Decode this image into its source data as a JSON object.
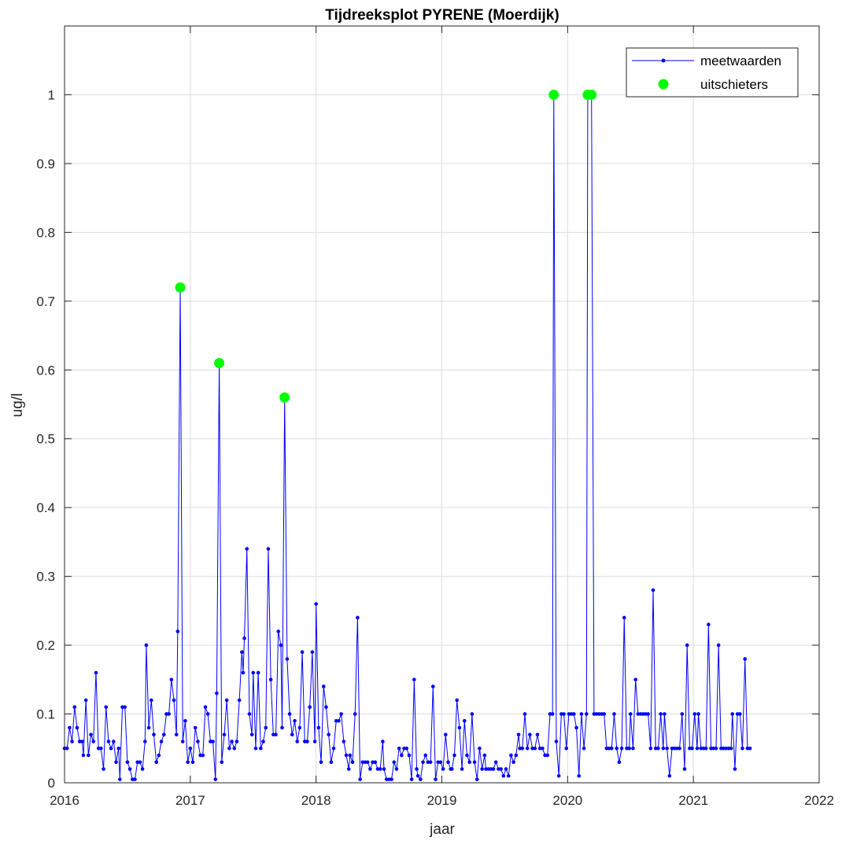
{
  "chart_data": {
    "type": "line",
    "title": "Tijdreeksplot PYRENE (Moerdijk)",
    "xlabel": "jaar",
    "ylabel": "ug/l",
    "xlim": [
      2016,
      2022
    ],
    "ylim": [
      0,
      1.1
    ],
    "x_ticks": [
      "2016",
      "2017",
      "2018",
      "2019",
      "2020",
      "2021",
      "2022"
    ],
    "y_ticks": [
      "0",
      "0.1",
      "0.2",
      "0.3",
      "0.4",
      "0.5",
      "0.6",
      "0.7",
      "0.8",
      "0.9",
      "1"
    ],
    "grid": true,
    "legend_position": "top-right",
    "series": [
      {
        "name": "meetwaarden",
        "color": "#0000ff",
        "style": "line-dot",
        "points": [
          [
            2016.0,
            0.05
          ],
          [
            2016.02,
            0.05
          ],
          [
            2016.04,
            0.08
          ],
          [
            2016.06,
            0.06
          ],
          [
            2016.08,
            0.11
          ],
          [
            2016.1,
            0.08
          ],
          [
            2016.12,
            0.06
          ],
          [
            2016.14,
            0.06
          ],
          [
            2016.15,
            0.04
          ],
          [
            2016.17,
            0.12
          ],
          [
            2016.19,
            0.04
          ],
          [
            2016.21,
            0.07
          ],
          [
            2016.23,
            0.06
          ],
          [
            2016.25,
            0.16
          ],
          [
            2016.27,
            0.05
          ],
          [
            2016.29,
            0.05
          ],
          [
            2016.31,
            0.02
          ],
          [
            2016.33,
            0.11
          ],
          [
            2016.35,
            0.06
          ],
          [
            2016.37,
            0.05
          ],
          [
            2016.39,
            0.06
          ],
          [
            2016.41,
            0.03
          ],
          [
            2016.43,
            0.05
          ],
          [
            2016.44,
            0.005
          ],
          [
            2016.46,
            0.11
          ],
          [
            2016.48,
            0.11
          ],
          [
            2016.5,
            0.03
          ],
          [
            2016.52,
            0.02
          ],
          [
            2016.54,
            0.005
          ],
          [
            2016.56,
            0.005
          ],
          [
            2016.58,
            0.03
          ],
          [
            2016.6,
            0.03
          ],
          [
            2016.62,
            0.02
          ],
          [
            2016.64,
            0.06
          ],
          [
            2016.65,
            0.2
          ],
          [
            2016.67,
            0.08
          ],
          [
            2016.69,
            0.12
          ],
          [
            2016.71,
            0.07
          ],
          [
            2016.73,
            0.03
          ],
          [
            2016.75,
            0.04
          ],
          [
            2016.77,
            0.06
          ],
          [
            2016.79,
            0.07
          ],
          [
            2016.81,
            0.1
          ],
          [
            2016.83,
            0.1
          ],
          [
            2016.85,
            0.15
          ],
          [
            2016.87,
            0.12
          ],
          [
            2016.89,
            0.07
          ],
          [
            2016.9,
            0.22
          ],
          [
            2016.92,
            0.72
          ],
          [
            2016.94,
            0.06
          ],
          [
            2016.96,
            0.09
          ],
          [
            2016.98,
            0.03
          ],
          [
            2017.0,
            0.05
          ],
          [
            2017.02,
            0.03
          ],
          [
            2017.04,
            0.08
          ],
          [
            2017.06,
            0.06
          ],
          [
            2017.08,
            0.04
          ],
          [
            2017.1,
            0.04
          ],
          [
            2017.12,
            0.11
          ],
          [
            2017.14,
            0.1
          ],
          [
            2017.16,
            0.06
          ],
          [
            2017.18,
            0.06
          ],
          [
            2017.2,
            0.005
          ],
          [
            2017.21,
            0.13
          ],
          [
            2017.23,
            0.61
          ],
          [
            2017.25,
            0.03
          ],
          [
            2017.27,
            0.07
          ],
          [
            2017.29,
            0.12
          ],
          [
            2017.31,
            0.05
          ],
          [
            2017.33,
            0.06
          ],
          [
            2017.35,
            0.05
          ],
          [
            2017.37,
            0.06
          ],
          [
            2017.39,
            0.12
          ],
          [
            2017.41,
            0.19
          ],
          [
            2017.42,
            0.16
          ],
          [
            2017.43,
            0.21
          ],
          [
            2017.45,
            0.34
          ],
          [
            2017.47,
            0.1
          ],
          [
            2017.49,
            0.07
          ],
          [
            2017.5,
            0.16
          ],
          [
            2017.52,
            0.05
          ],
          [
            2017.54,
            0.16
          ],
          [
            2017.56,
            0.05
          ],
          [
            2017.58,
            0.06
          ],
          [
            2017.6,
            0.08
          ],
          [
            2017.62,
            0.34
          ],
          [
            2017.64,
            0.15
          ],
          [
            2017.66,
            0.07
          ],
          [
            2017.68,
            0.07
          ],
          [
            2017.7,
            0.22
          ],
          [
            2017.72,
            0.2
          ],
          [
            2017.73,
            0.08
          ],
          [
            2017.75,
            0.56
          ],
          [
            2017.77,
            0.18
          ],
          [
            2017.79,
            0.1
          ],
          [
            2017.81,
            0.07
          ],
          [
            2017.83,
            0.09
          ],
          [
            2017.85,
            0.06
          ],
          [
            2017.87,
            0.08
          ],
          [
            2017.89,
            0.19
          ],
          [
            2017.91,
            0.06
          ],
          [
            2017.93,
            0.06
          ],
          [
            2017.95,
            0.11
          ],
          [
            2017.97,
            0.19
          ],
          [
            2017.99,
            0.06
          ],
          [
            2018.0,
            0.26
          ],
          [
            2018.02,
            0.08
          ],
          [
            2018.04,
            0.03
          ],
          [
            2018.06,
            0.14
          ],
          [
            2018.08,
            0.11
          ],
          [
            2018.1,
            0.07
          ],
          [
            2018.12,
            0.03
          ],
          [
            2018.14,
            0.05
          ],
          [
            2018.16,
            0.09
          ],
          [
            2018.18,
            0.09
          ],
          [
            2018.2,
            0.1
          ],
          [
            2018.22,
            0.06
          ],
          [
            2018.24,
            0.04
          ],
          [
            2018.26,
            0.02
          ],
          [
            2018.27,
            0.04
          ],
          [
            2018.29,
            0.03
          ],
          [
            2018.31,
            0.1
          ],
          [
            2018.33,
            0.24
          ],
          [
            2018.35,
            0.005
          ],
          [
            2018.37,
            0.03
          ],
          [
            2018.39,
            0.03
          ],
          [
            2018.41,
            0.03
          ],
          [
            2018.43,
            0.02
          ],
          [
            2018.45,
            0.03
          ],
          [
            2018.47,
            0.03
          ],
          [
            2018.49,
            0.02
          ],
          [
            2018.51,
            0.02
          ],
          [
            2018.53,
            0.06
          ],
          [
            2018.54,
            0.02
          ],
          [
            2018.56,
            0.005
          ],
          [
            2018.58,
            0.005
          ],
          [
            2018.6,
            0.005
          ],
          [
            2018.62,
            0.03
          ],
          [
            2018.64,
            0.02
          ],
          [
            2018.66,
            0.05
          ],
          [
            2018.68,
            0.04
          ],
          [
            2018.7,
            0.05
          ],
          [
            2018.72,
            0.05
          ],
          [
            2018.74,
            0.04
          ],
          [
            2018.76,
            0.005
          ],
          [
            2018.78,
            0.15
          ],
          [
            2018.8,
            0.02
          ],
          [
            2018.81,
            0.01
          ],
          [
            2018.83,
            0.005
          ],
          [
            2018.85,
            0.03
          ],
          [
            2018.87,
            0.04
          ],
          [
            2018.89,
            0.03
          ],
          [
            2018.91,
            0.03
          ],
          [
            2018.93,
            0.14
          ],
          [
            2018.95,
            0.005
          ],
          [
            2018.97,
            0.03
          ],
          [
            2018.99,
            0.03
          ],
          [
            2019.01,
            0.02
          ],
          [
            2019.03,
            0.07
          ],
          [
            2019.05,
            0.03
          ],
          [
            2019.07,
            0.02
          ],
          [
            2019.08,
            0.02
          ],
          [
            2019.1,
            0.04
          ],
          [
            2019.12,
            0.12
          ],
          [
            2019.14,
            0.08
          ],
          [
            2019.16,
            0.02
          ],
          [
            2019.18,
            0.09
          ],
          [
            2019.2,
            0.04
          ],
          [
            2019.22,
            0.03
          ],
          [
            2019.24,
            0.1
          ],
          [
            2019.26,
            0.03
          ],
          [
            2019.28,
            0.005
          ],
          [
            2019.3,
            0.05
          ],
          [
            2019.32,
            0.02
          ],
          [
            2019.34,
            0.04
          ],
          [
            2019.35,
            0.02
          ],
          [
            2019.37,
            0.02
          ],
          [
            2019.39,
            0.02
          ],
          [
            2019.41,
            0.02
          ],
          [
            2019.43,
            0.03
          ],
          [
            2019.45,
            0.02
          ],
          [
            2019.47,
            0.02
          ],
          [
            2019.49,
            0.01
          ],
          [
            2019.51,
            0.02
          ],
          [
            2019.53,
            0.01
          ],
          [
            2019.55,
            0.04
          ],
          [
            2019.57,
            0.03
          ],
          [
            2019.59,
            0.04
          ],
          [
            2019.61,
            0.07
          ],
          [
            2019.62,
            0.05
          ],
          [
            2019.64,
            0.05
          ],
          [
            2019.66,
            0.1
          ],
          [
            2019.68,
            0.05
          ],
          [
            2019.7,
            0.07
          ],
          [
            2019.72,
            0.05
          ],
          [
            2019.74,
            0.05
          ],
          [
            2019.76,
            0.07
          ],
          [
            2019.78,
            0.05
          ],
          [
            2019.8,
            0.05
          ],
          [
            2019.82,
            0.04
          ],
          [
            2019.84,
            0.04
          ],
          [
            2019.86,
            0.1
          ],
          [
            2019.88,
            0.1
          ],
          [
            2019.89,
            1.0
          ],
          [
            2019.91,
            0.06
          ],
          [
            2019.93,
            0.01
          ],
          [
            2019.95,
            0.1
          ],
          [
            2019.97,
            0.1
          ],
          [
            2019.99,
            0.05
          ],
          [
            2020.01,
            0.1
          ],
          [
            2020.03,
            0.1
          ],
          [
            2020.05,
            0.1
          ],
          [
            2020.07,
            0.08
          ],
          [
            2020.09,
            0.01
          ],
          [
            2020.11,
            0.1
          ],
          [
            2020.13,
            0.05
          ],
          [
            2020.15,
            0.1
          ],
          [
            2020.16,
            1.0
          ],
          [
            2020.19,
            1.0
          ],
          [
            2020.21,
            0.1
          ],
          [
            2020.23,
            0.1
          ],
          [
            2020.25,
            0.1
          ],
          [
            2020.27,
            0.1
          ],
          [
            2020.29,
            0.1
          ],
          [
            2020.31,
            0.05
          ],
          [
            2020.33,
            0.05
          ],
          [
            2020.35,
            0.05
          ],
          [
            2020.37,
            0.1
          ],
          [
            2020.39,
            0.05
          ],
          [
            2020.41,
            0.03
          ],
          [
            2020.43,
            0.05
          ],
          [
            2020.45,
            0.24
          ],
          [
            2020.47,
            0.05
          ],
          [
            2020.49,
            0.05
          ],
          [
            2020.5,
            0.1
          ],
          [
            2020.52,
            0.05
          ],
          [
            2020.54,
            0.15
          ],
          [
            2020.56,
            0.1
          ],
          [
            2020.58,
            0.1
          ],
          [
            2020.6,
            0.1
          ],
          [
            2020.62,
            0.1
          ],
          [
            2020.64,
            0.1
          ],
          [
            2020.66,
            0.05
          ],
          [
            2020.68,
            0.28
          ],
          [
            2020.7,
            0.05
          ],
          [
            2020.72,
            0.05
          ],
          [
            2020.74,
            0.1
          ],
          [
            2020.76,
            0.05
          ],
          [
            2020.77,
            0.1
          ],
          [
            2020.79,
            0.05
          ],
          [
            2020.81,
            0.01
          ],
          [
            2020.83,
            0.05
          ],
          [
            2020.85,
            0.05
          ],
          [
            2020.87,
            0.05
          ],
          [
            2020.89,
            0.05
          ],
          [
            2020.91,
            0.1
          ],
          [
            2020.93,
            0.02
          ],
          [
            2020.95,
            0.2
          ],
          [
            2020.97,
            0.05
          ],
          [
            2020.99,
            0.05
          ],
          [
            2021.01,
            0.1
          ],
          [
            2021.03,
            0.05
          ],
          [
            2021.04,
            0.1
          ],
          [
            2021.06,
            0.05
          ],
          [
            2021.08,
            0.05
          ],
          [
            2021.1,
            0.05
          ],
          [
            2021.12,
            0.23
          ],
          [
            2021.14,
            0.05
          ],
          [
            2021.16,
            0.05
          ],
          [
            2021.18,
            0.05
          ],
          [
            2021.2,
            0.2
          ],
          [
            2021.22,
            0.05
          ],
          [
            2021.24,
            0.05
          ],
          [
            2021.26,
            0.05
          ],
          [
            2021.28,
            0.05
          ],
          [
            2021.3,
            0.05
          ],
          [
            2021.31,
            0.1
          ],
          [
            2021.33,
            0.02
          ],
          [
            2021.35,
            0.1
          ],
          [
            2021.37,
            0.1
          ],
          [
            2021.39,
            0.05
          ],
          [
            2021.41,
            0.18
          ],
          [
            2021.43,
            0.05
          ],
          [
            2021.45,
            0.05
          ]
        ]
      },
      {
        "name": "uitschieters",
        "color": "#00ff00",
        "style": "marker",
        "points": [
          [
            2016.92,
            0.72
          ],
          [
            2017.23,
            0.61
          ],
          [
            2017.75,
            0.56
          ],
          [
            2019.89,
            1.0
          ],
          [
            2020.16,
            1.0
          ],
          [
            2020.19,
            1.0
          ]
        ]
      }
    ]
  }
}
